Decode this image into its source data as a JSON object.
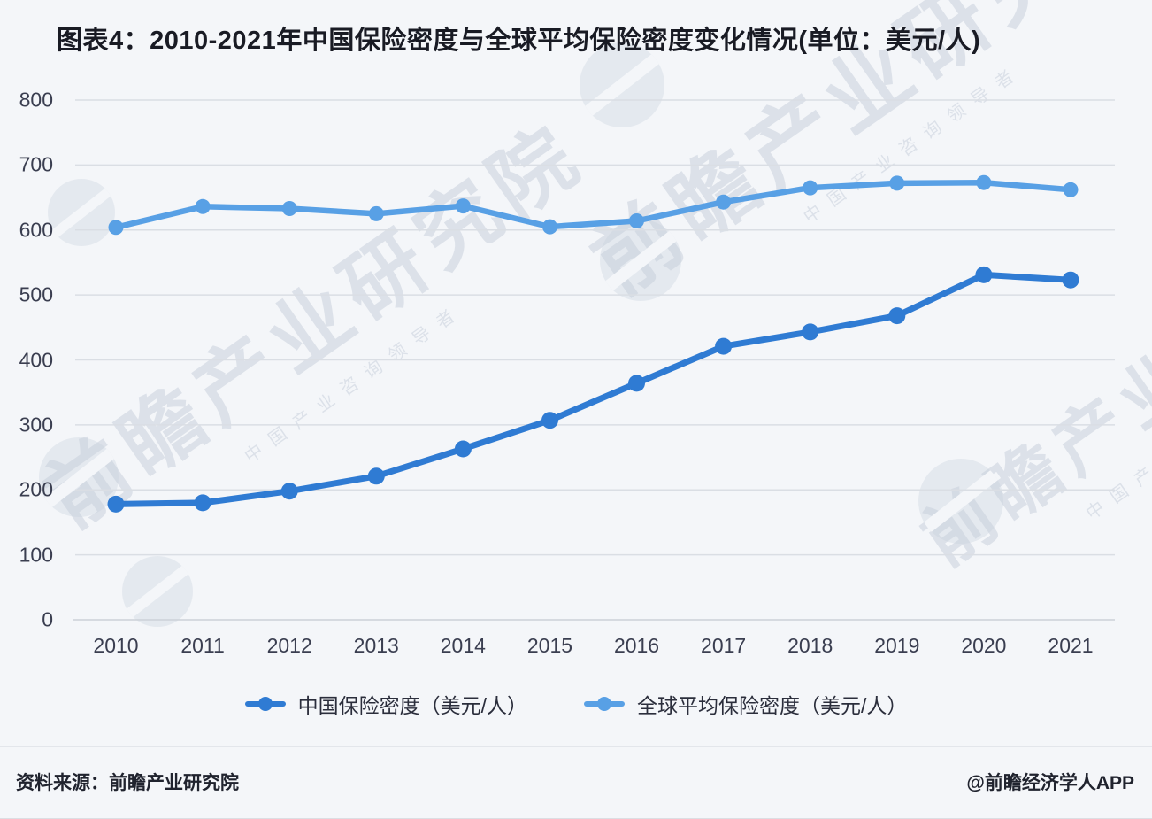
{
  "title": "图表4：2010-2021年中国保险密度与全球平均保险密度变化情况(单位：美元/人)",
  "footer": {
    "source": "资料来源：前瞻产业研究院",
    "credit": "@前瞻经济学人APP"
  },
  "watermark": {
    "text": "前瞻产业研究院",
    "tagline": "中国产业咨询领导者"
  },
  "colors": {
    "china_line": "#2f7bd3",
    "global_line": "#58a0e5",
    "gridline": "#dadee4",
    "background": "#f4f6f9"
  },
  "chart_data": {
    "type": "line",
    "x": [
      2010,
      2011,
      2012,
      2013,
      2014,
      2015,
      2016,
      2017,
      2018,
      2019,
      2020,
      2021
    ],
    "series": [
      {
        "name": "中国保险密度（美元/人）",
        "color": "#2f7bd3",
        "values": [
          178,
          180,
          198,
          221,
          263,
          307,
          364,
          421,
          443,
          468,
          531,
          523
        ]
      },
      {
        "name": "全球平均保险密度（美元/人）",
        "color": "#58a0e5",
        "values": [
          604,
          636,
          633,
          625,
          637,
          605,
          614,
          643,
          665,
          672,
          673,
          662
        ]
      }
    ],
    "title": "图表4：2010-2021年中国保险密度与全球平均保险密度变化情况(单位：美元/人)",
    "xlabel": "",
    "ylabel": "",
    "ylim": [
      0,
      800
    ],
    "ytick_step": 100,
    "yticks": [
      0,
      100,
      200,
      300,
      400,
      500,
      600,
      700,
      800
    ],
    "grid": true,
    "legend_position": "bottom"
  }
}
